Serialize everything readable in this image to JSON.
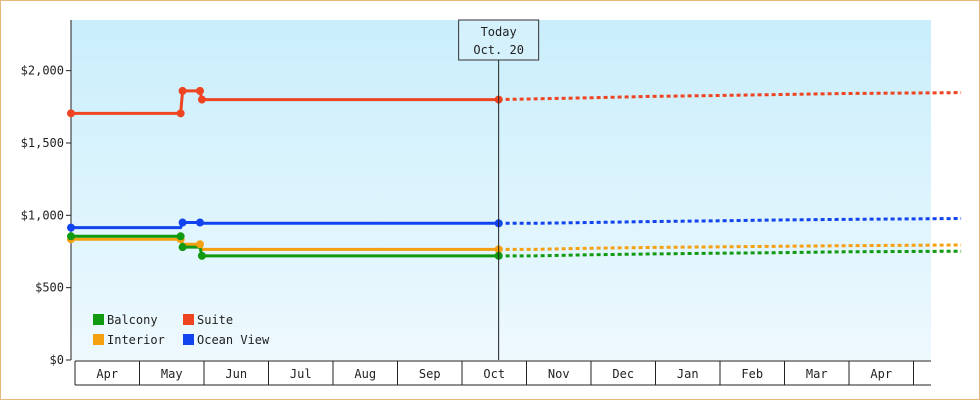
{
  "chart_data": {
    "type": "line",
    "step": true,
    "y_axis": {
      "min": 0,
      "max": 2350,
      "ticks": [
        0,
        500,
        1000,
        1500,
        2000
      ],
      "tick_labels": [
        "$0",
        "$500",
        "$1,000",
        "$1,500",
        "$2,000"
      ],
      "grid": false
    },
    "x_axis": {
      "months": [
        "Apr",
        "May",
        "Jun",
        "Jul",
        "Aug",
        "Sep",
        "Oct",
        "Nov",
        "Dec",
        "Jan",
        "Feb",
        "Mar",
        "Apr"
      ]
    },
    "today": {
      "label": "Today",
      "date": "Oct. 20",
      "x": 6.63
    },
    "legend": {
      "position": "bottom-left",
      "items": [
        {
          "label": "Balcony",
          "series": "balcony"
        },
        {
          "label": "Suite",
          "series": "suite"
        },
        {
          "label": "Interior",
          "series": "interior"
        },
        {
          "label": "Ocean View",
          "series": "ocean"
        }
      ]
    },
    "series": [
      {
        "key": "suite",
        "name": "Suite",
        "color": "#ee4422",
        "actual": [
          [
            0,
            1705
          ],
          [
            1.7,
            1705
          ],
          [
            1.73,
            1860
          ],
          [
            2.0,
            1860
          ],
          [
            2.03,
            1800
          ],
          [
            6.63,
            1800
          ]
        ],
        "forecast": [
          [
            6.63,
            1800
          ],
          [
            7.2,
            1805
          ],
          [
            8.0,
            1812
          ],
          [
            9.0,
            1822
          ],
          [
            10.0,
            1828
          ],
          [
            11.0,
            1835
          ],
          [
            12.0,
            1842
          ],
          [
            13.8,
            1848
          ]
        ]
      },
      {
        "key": "ocean",
        "name": "Ocean View",
        "color": "#1144ee",
        "actual": [
          [
            0,
            915
          ],
          [
            1.7,
            915
          ],
          [
            1.73,
            950
          ],
          [
            2.0,
            950
          ],
          [
            2.03,
            945
          ],
          [
            6.63,
            945
          ]
        ],
        "forecast": [
          [
            6.63,
            945
          ],
          [
            7.2,
            945
          ],
          [
            8.0,
            950
          ],
          [
            9.0,
            957
          ],
          [
            10.0,
            962
          ],
          [
            11.0,
            968
          ],
          [
            12.0,
            972
          ],
          [
            13.8,
            978
          ]
        ]
      },
      {
        "key": "interior",
        "name": "Interior",
        "color": "#f5a010",
        "actual": [
          [
            0,
            835
          ],
          [
            1.7,
            835
          ],
          [
            1.73,
            800
          ],
          [
            2.0,
            800
          ],
          [
            2.03,
            765
          ],
          [
            6.63,
            765
          ]
        ],
        "forecast": [
          [
            6.63,
            765
          ],
          [
            7.2,
            765
          ],
          [
            8.0,
            772
          ],
          [
            9.0,
            778
          ],
          [
            10.0,
            782
          ],
          [
            11.0,
            786
          ],
          [
            12.0,
            790
          ],
          [
            13.8,
            795
          ]
        ]
      },
      {
        "key": "balcony",
        "name": "Balcony",
        "color": "#119911",
        "actual": [
          [
            0,
            855
          ],
          [
            1.7,
            855
          ],
          [
            1.73,
            780
          ],
          [
            2.0,
            780
          ],
          [
            2.03,
            720
          ],
          [
            6.63,
            720
          ]
        ],
        "forecast": [
          [
            6.63,
            720
          ],
          [
            7.2,
            720
          ],
          [
            8.0,
            727
          ],
          [
            9.0,
            733
          ],
          [
            10.0,
            738
          ],
          [
            11.0,
            742
          ],
          [
            12.0,
            748
          ],
          [
            13.8,
            752
          ]
        ]
      }
    ],
    "markers": {
      "suite": [
        [
          0,
          1705
        ],
        [
          1.7,
          1705
        ],
        [
          1.73,
          1860
        ],
        [
          2.0,
          1860
        ],
        [
          2.03,
          1800
        ],
        [
          6.63,
          1800
        ]
      ],
      "ocean": [
        [
          0,
          915
        ],
        [
          1.73,
          950
        ],
        [
          2.0,
          950
        ],
        [
          6.63,
          945
        ]
      ],
      "interior": [
        [
          0,
          835
        ],
        [
          1.7,
          835
        ],
        [
          2.0,
          800
        ],
        [
          6.63,
          765
        ]
      ],
      "balcony": [
        [
          0,
          855
        ],
        [
          1.7,
          855
        ],
        [
          1.73,
          780
        ],
        [
          2.03,
          720
        ],
        [
          6.63,
          720
        ]
      ]
    }
  }
}
